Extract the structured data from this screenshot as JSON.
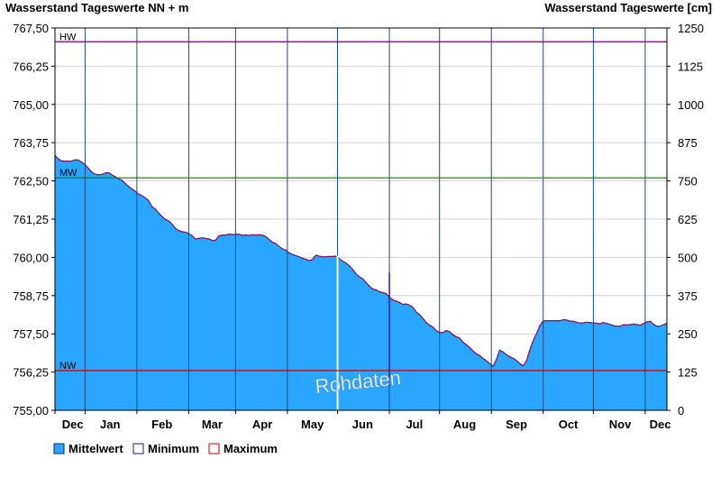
{
  "chart_data": {
    "type": "area",
    "left_axis_title": "Wasserstand Tageswerte NN + m",
    "right_axis_title": "Wasserstand Tageswerte [cm]",
    "left_ticks": [
      "767,50",
      "766,25",
      "765,00",
      "763,75",
      "762,50",
      "761,25",
      "760,00",
      "758,75",
      "757,50",
      "756,25",
      "755,00"
    ],
    "left_tick_values": [
      767.5,
      766.25,
      765.0,
      763.75,
      762.5,
      761.25,
      760.0,
      758.75,
      757.5,
      756.25,
      755.0
    ],
    "right_ticks": [
      "1250",
      "1125",
      "1000",
      "875",
      "750",
      "625",
      "500",
      "375",
      "250",
      "125",
      "0"
    ],
    "ylim": [
      755.0,
      767.5
    ],
    "months": [
      "Dec",
      "Jan",
      "Feb",
      "Mar",
      "Apr",
      "May",
      "Jun",
      "Jul",
      "Aug",
      "Sep",
      "Oct",
      "Nov",
      "Dec"
    ],
    "reference_lines": [
      {
        "label": "HW",
        "value": 767.05,
        "color": "#800080"
      },
      {
        "label": "MW",
        "value": 762.6,
        "color": "#008000"
      },
      {
        "label": "NW",
        "value": 756.3,
        "color": "#cc0000"
      }
    ],
    "watermark": "Rohdaten",
    "series_x": [
      0,
      2,
      4,
      6,
      8,
      10,
      12,
      14,
      16,
      18,
      20,
      22,
      24,
      26,
      28,
      30,
      32,
      34,
      36,
      38,
      40,
      42,
      44,
      46,
      48,
      50,
      52,
      54,
      56,
      58,
      60,
      62,
      64,
      66,
      68,
      70,
      72,
      74,
      76,
      78,
      80,
      82,
      84,
      86,
      88,
      90,
      92,
      94,
      96,
      98,
      100,
      102,
      104,
      106,
      108,
      110,
      112,
      114,
      116,
      118,
      120,
      122,
      124,
      126,
      128,
      130,
      132,
      134,
      136,
      138,
      140,
      142,
      144,
      146,
      148,
      150,
      152,
      154,
      156,
      158,
      160,
      162,
      164,
      166,
      168,
      170,
      172,
      174,
      176,
      178,
      180,
      182,
      184,
      186,
      188,
      190,
      192,
      194,
      196,
      198,
      200,
      202,
      204,
      206,
      208,
      210,
      212,
      214,
      216,
      218,
      220,
      222,
      224,
      226,
      228,
      230,
      232,
      234,
      236,
      238,
      240,
      242,
      244,
      246,
      248,
      250,
      252,
      254,
      256,
      258,
      260,
      262,
      264,
      266,
      268,
      270,
      272,
      274,
      276,
      278,
      280,
      282,
      284,
      286,
      288,
      290,
      292,
      294,
      296,
      298,
      300,
      302,
      304,
      306,
      308,
      310,
      312,
      314,
      316,
      318,
      320,
      322,
      324,
      326,
      328,
      330,
      332,
      334,
      336,
      338,
      340,
      342,
      344,
      346,
      348,
      350,
      352,
      354,
      356,
      358,
      360,
      362,
      364,
      366
    ],
    "series": [
      {
        "name": "Mittelwert",
        "color": "#29a6ff",
        "values": [
          763.33,
          763.22,
          763.15,
          763.15,
          763.14,
          763.15,
          763.19,
          763.18,
          763.11,
          763.04,
          762.91,
          762.79,
          762.72,
          762.7,
          762.71,
          762.76,
          762.77,
          762.7,
          762.64,
          762.57,
          762.52,
          762.42,
          762.32,
          762.24,
          762.16,
          762.07,
          762.02,
          761.95,
          761.85,
          761.66,
          761.58,
          761.45,
          761.34,
          761.24,
          761.19,
          761.09,
          760.95,
          760.88,
          760.84,
          760.82,
          760.78,
          760.71,
          760.6,
          760.62,
          760.64,
          760.62,
          760.6,
          760.55,
          760.56,
          760.7,
          760.73,
          760.73,
          760.76,
          760.75,
          760.75,
          760.76,
          760.72,
          760.73,
          760.72,
          760.74,
          760.73,
          760.74,
          760.73,
          760.68,
          760.59,
          760.5,
          760.45,
          760.36,
          760.28,
          760.24,
          760.15,
          760.1,
          760.06,
          760.02,
          759.97,
          759.94,
          759.9,
          759.93,
          760.07,
          760.04,
          760.02,
          760.02,
          760.03,
          760.03,
          760.04,
          759.96,
          759.88,
          759.81,
          759.73,
          759.61,
          759.47,
          759.37,
          759.3,
          759.18,
          759.06,
          758.97,
          758.94,
          758.88,
          758.85,
          758.82,
          758.7,
          758.61,
          758.57,
          758.53,
          758.46,
          758.48,
          758.44,
          758.37,
          758.22,
          758.13,
          758.01,
          757.87,
          757.79,
          757.72,
          757.61,
          757.54,
          757.54,
          757.61,
          757.57,
          757.47,
          757.41,
          757.36,
          757.23,
          757.15,
          757.05,
          756.95,
          756.85,
          756.79,
          756.7,
          756.62,
          756.53,
          756.44,
          756.66,
          756.97,
          756.91,
          756.82,
          756.75,
          756.7,
          756.63,
          756.53,
          756.45,
          756.62,
          756.98,
          757.28,
          757.51,
          757.77,
          757.92,
          757.93,
          757.93,
          757.93,
          757.93,
          757.93,
          757.96,
          757.95,
          757.92,
          757.91,
          757.88,
          757.85,
          757.86,
          757.88,
          757.87,
          757.85,
          757.85,
          757.83,
          757.87,
          757.84,
          757.81,
          757.77,
          757.75,
          757.75,
          757.8,
          757.79,
          757.8,
          757.82,
          757.81,
          757.77,
          757.84,
          757.89,
          757.91,
          757.81,
          757.75,
          757.75,
          757.8,
          757.85,
          757.87,
          757.88
        ]
      }
    ],
    "legend": [
      {
        "label": "Mittelwert",
        "color": "#29a6ff"
      },
      {
        "label": "Minimum",
        "color": "#ffffff"
      },
      {
        "label": "Maximum",
        "color": "#ffffff"
      }
    ]
  }
}
